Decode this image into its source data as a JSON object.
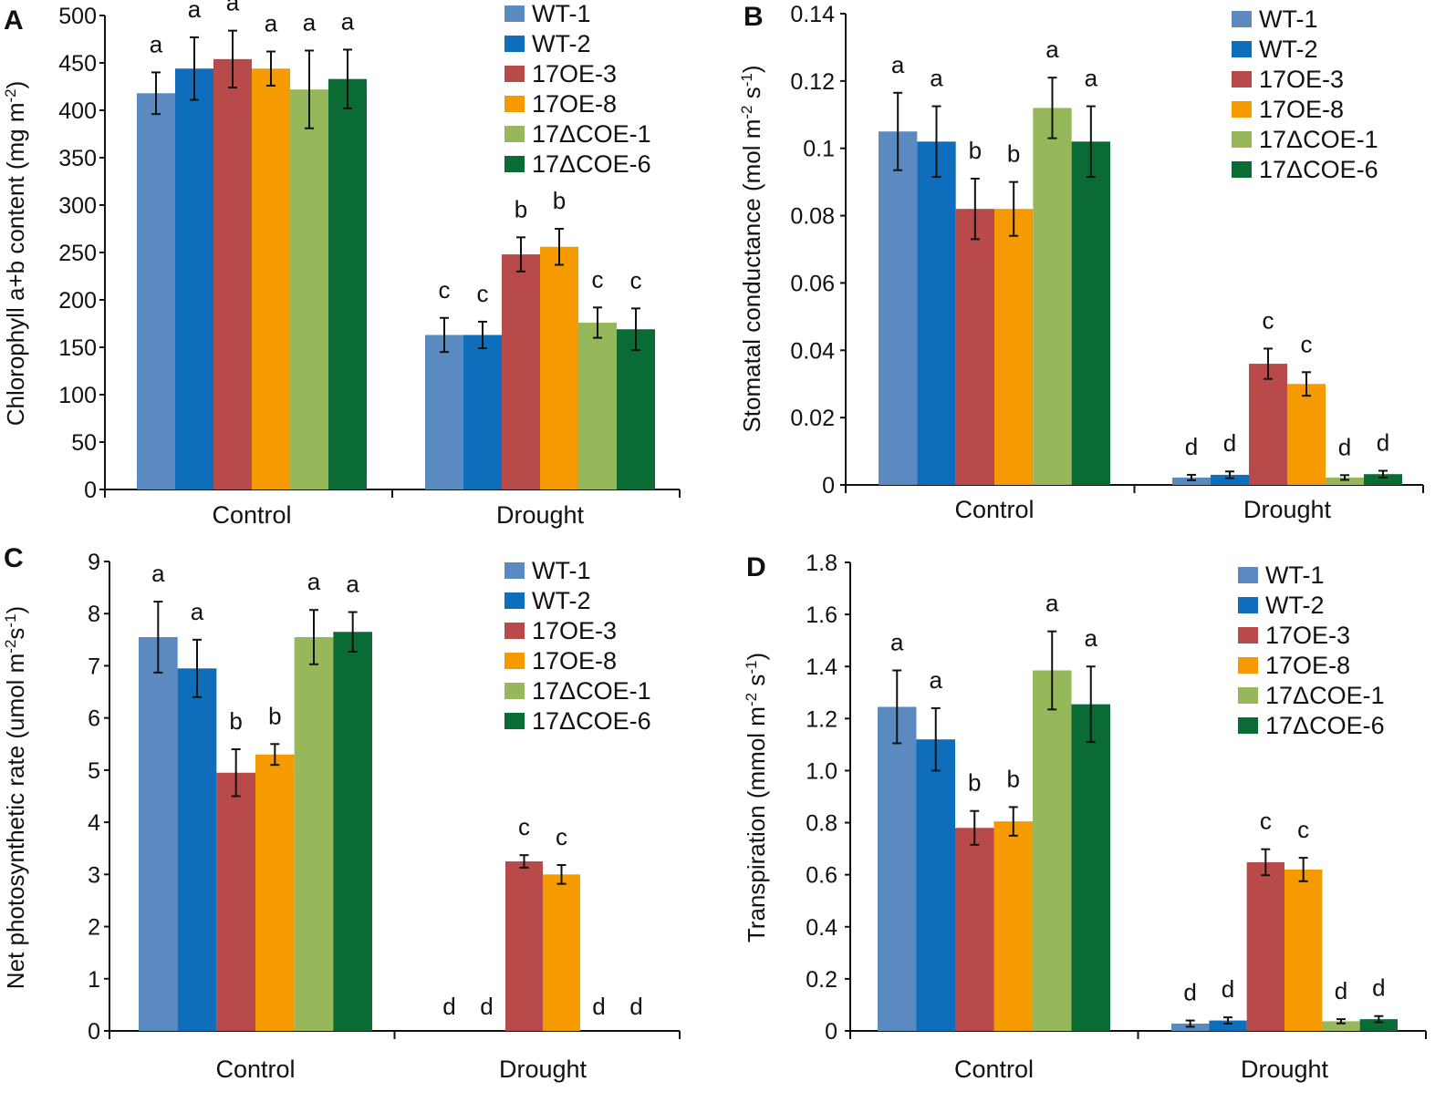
{
  "figure": {
    "groups": [
      "Control",
      "Drought"
    ],
    "legend": [
      {
        "label": "WT-1",
        "color": "#5b8ac1"
      },
      {
        "label": "WT-2",
        "color": "#0f6ebb"
      },
      {
        "label": "17OE-3",
        "color": "#b84a4a"
      },
      {
        "label": "17OE-8",
        "color": "#f59a00"
      },
      {
        "label": "17ΔCOE-1",
        "color": "#97b85a"
      },
      {
        "label": "17ΔCOE-6",
        "color": "#0a6b35"
      }
    ]
  },
  "chart_data": [
    {
      "panel": "A",
      "type": "bar",
      "ylabel": "Chlorophyll a+b content (mg m-2)",
      "ylabel_main": "Chlorophyll a+b content (mg m",
      "ylabel_sup": "-2",
      "ylabel_end": ")",
      "ylim": [
        0,
        500
      ],
      "yticks": [
        "0",
        "50",
        "100",
        "150",
        "200",
        "250",
        "300",
        "350",
        "400",
        "450",
        "500"
      ],
      "categories": [
        "Control",
        "Drought"
      ],
      "series": [
        {
          "name": "WT-1",
          "values": [
            418,
            163
          ],
          "errors": [
            22,
            18
          ]
        },
        {
          "name": "WT-2",
          "values": [
            444,
            163
          ],
          "errors": [
            33,
            14
          ]
        },
        {
          "name": "17OE-3",
          "values": [
            454,
            248
          ],
          "errors": [
            30,
            18
          ]
        },
        {
          "name": "17OE-8",
          "values": [
            444,
            256
          ],
          "errors": [
            18,
            19
          ]
        },
        {
          "name": "17ΔCOE-1",
          "values": [
            422,
            176
          ],
          "errors": [
            41,
            16
          ]
        },
        {
          "name": "17ΔCOE-6",
          "values": [
            433,
            169
          ],
          "errors": [
            31,
            22
          ]
        }
      ],
      "sig_letters": [
        [
          "a",
          "c"
        ],
        [
          "a",
          "c"
        ],
        [
          "a",
          "b"
        ],
        [
          "a",
          "b"
        ],
        [
          "a",
          "c"
        ],
        [
          "a",
          "c"
        ]
      ]
    },
    {
      "panel": "B",
      "type": "bar",
      "ylabel": "Stomatal conductance (mol m-2 s-1)",
      "ylabel_main": "Stomatal conductance (mol m",
      "ylabel_sup": "-2",
      "ylabel_mid": " s",
      "ylabel_sup2": "-1",
      "ylabel_end": ")",
      "ylim": [
        0,
        0.14
      ],
      "yticks": [
        "0",
        "0.02",
        "0.04",
        "0.06",
        "0.08",
        "0.1",
        "0.12",
        "0.14"
      ],
      "categories": [
        "Control",
        "Drought"
      ],
      "series": [
        {
          "name": "WT-1",
          "values": [
            0.105,
            0.0022
          ],
          "errors": [
            0.0115,
            0.0008
          ]
        },
        {
          "name": "WT-2",
          "values": [
            0.102,
            0.003
          ],
          "errors": [
            0.0105,
            0.001
          ]
        },
        {
          "name": "17OE-3",
          "values": [
            0.082,
            0.036
          ],
          "errors": [
            0.009,
            0.0045
          ]
        },
        {
          "name": "17OE-8",
          "values": [
            0.082,
            0.03
          ],
          "errors": [
            0.008,
            0.0035
          ]
        },
        {
          "name": "17ΔCOE-1",
          "values": [
            0.112,
            0.0022
          ],
          "errors": [
            0.009,
            0.0007
          ]
        },
        {
          "name": "17ΔCOE-6",
          "values": [
            0.102,
            0.0032
          ],
          "errors": [
            0.0105,
            0.001
          ]
        }
      ],
      "sig_letters": [
        [
          "a",
          "d"
        ],
        [
          "a",
          "d"
        ],
        [
          "b",
          "c"
        ],
        [
          "b",
          "c"
        ],
        [
          "a",
          "d"
        ],
        [
          "a",
          "d"
        ]
      ]
    },
    {
      "panel": "C",
      "type": "bar",
      "ylabel": "Net photosynthetic rate (umol m-2 s-1)",
      "ylabel_main": "Net photosynthetic rate (umol m",
      "ylabel_sup": "-2",
      "ylabel_mid": "s",
      "ylabel_sup2": "-1",
      "ylabel_end": ")",
      "ylim": [
        0,
        9
      ],
      "yticks": [
        "0",
        "1",
        "2",
        "3",
        "4",
        "5",
        "6",
        "7",
        "8",
        "9"
      ],
      "categories": [
        "Control",
        "Drought"
      ],
      "series": [
        {
          "name": "WT-1",
          "values": [
            7.55,
            0
          ],
          "errors": [
            0.68,
            0
          ]
        },
        {
          "name": "WT-2",
          "values": [
            6.95,
            0
          ],
          "errors": [
            0.55,
            0
          ]
        },
        {
          "name": "17OE-3",
          "values": [
            4.95,
            3.25
          ],
          "errors": [
            0.45,
            0.12
          ]
        },
        {
          "name": "17OE-8",
          "values": [
            5.3,
            3.0
          ],
          "errors": [
            0.2,
            0.18
          ]
        },
        {
          "name": "17ΔCOE-1",
          "values": [
            7.55,
            0
          ],
          "errors": [
            0.52,
            0
          ]
        },
        {
          "name": "17ΔCOE-6",
          "values": [
            7.65,
            0
          ],
          "errors": [
            0.38,
            0
          ]
        }
      ],
      "sig_letters": [
        [
          "a",
          "d"
        ],
        [
          "a",
          "d"
        ],
        [
          "b",
          "c"
        ],
        [
          "b",
          "c"
        ],
        [
          "a",
          "d"
        ],
        [
          "a",
          "d"
        ]
      ]
    },
    {
      "panel": "D",
      "type": "bar",
      "ylabel": "Transpiration (mmol m-2 s-1)",
      "ylabel_main": "Transpiration (mmol m",
      "ylabel_sup": "-2",
      "ylabel_mid": " s",
      "ylabel_sup2": "-1",
      "ylabel_end": ")",
      "ylim": [
        0,
        1.8
      ],
      "yticks": [
        "0",
        "0.2",
        "0.4",
        "0.6",
        "0.8",
        "1.0",
        "1.2",
        "1.4",
        "1.6",
        "1.8"
      ],
      "categories": [
        "Control",
        "Drought"
      ],
      "series": [
        {
          "name": "WT-1",
          "values": [
            1.245,
            0.028
          ],
          "errors": [
            0.14,
            0.012
          ]
        },
        {
          "name": "WT-2",
          "values": [
            1.12,
            0.04
          ],
          "errors": [
            0.12,
            0.012
          ]
        },
        {
          "name": "17OE-3",
          "values": [
            0.78,
            0.648
          ],
          "errors": [
            0.065,
            0.05
          ]
        },
        {
          "name": "17OE-8",
          "values": [
            0.805,
            0.62
          ],
          "errors": [
            0.055,
            0.045
          ]
        },
        {
          "name": "17ΔCOE-1",
          "values": [
            1.385,
            0.037
          ],
          "errors": [
            0.15,
            0.008
          ]
        },
        {
          "name": "17ΔCOE-6",
          "values": [
            1.255,
            0.045
          ],
          "errors": [
            0.145,
            0.012
          ]
        }
      ],
      "sig_letters": [
        [
          "a",
          "d"
        ],
        [
          "a",
          "d"
        ],
        [
          "b",
          "c"
        ],
        [
          "b",
          "c"
        ],
        [
          "a",
          "d"
        ],
        [
          "a",
          "d"
        ]
      ]
    }
  ]
}
